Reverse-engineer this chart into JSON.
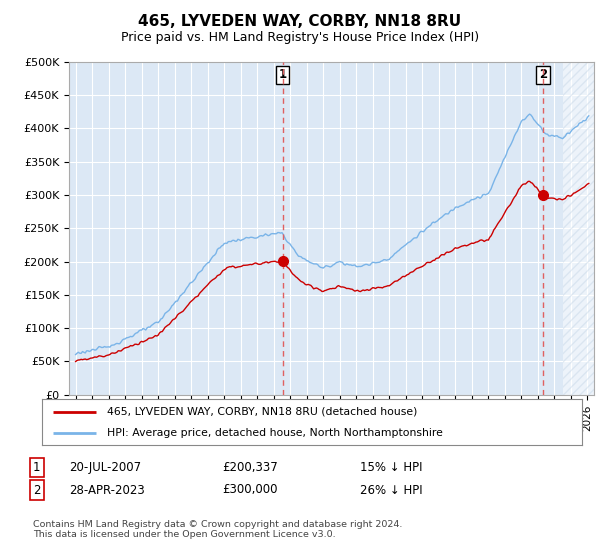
{
  "title": "465, LYVEDEN WAY, CORBY, NN18 8RU",
  "subtitle": "Price paid vs. HM Land Registry's House Price Index (HPI)",
  "ylabel_ticks": [
    "£0",
    "£50K",
    "£100K",
    "£150K",
    "£200K",
    "£250K",
    "£300K",
    "£350K",
    "£400K",
    "£450K",
    "£500K"
  ],
  "ytick_values": [
    0,
    50000,
    100000,
    150000,
    200000,
    250000,
    300000,
    350000,
    400000,
    450000,
    500000
  ],
  "ylim": [
    0,
    500000
  ],
  "xlim_start": 1994.6,
  "xlim_end": 2026.4,
  "hpi_color": "#7ab4e8",
  "price_color": "#cc0000",
  "dashed_line_color": "#e06060",
  "purchase1_x": 2007.54,
  "purchase1_y": 200337,
  "purchase2_x": 2023.32,
  "purchase2_y": 300000,
  "legend_entry1": "465, LYVEDEN WAY, CORBY, NN18 8RU (detached house)",
  "legend_entry2": "HPI: Average price, detached house, North Northamptonshire",
  "table_row1": [
    "1",
    "20-JUL-2007",
    "£200,337",
    "15% ↓ HPI"
  ],
  "table_row2": [
    "2",
    "28-APR-2023",
    "£300,000",
    "26% ↓ HPI"
  ],
  "footnote": "Contains HM Land Registry data © Crown copyright and database right 2024.\nThis data is licensed under the Open Government Licence v3.0.",
  "background_color": "#ffffff",
  "plot_bg_color": "#dce8f5",
  "grid_color": "#ffffff"
}
